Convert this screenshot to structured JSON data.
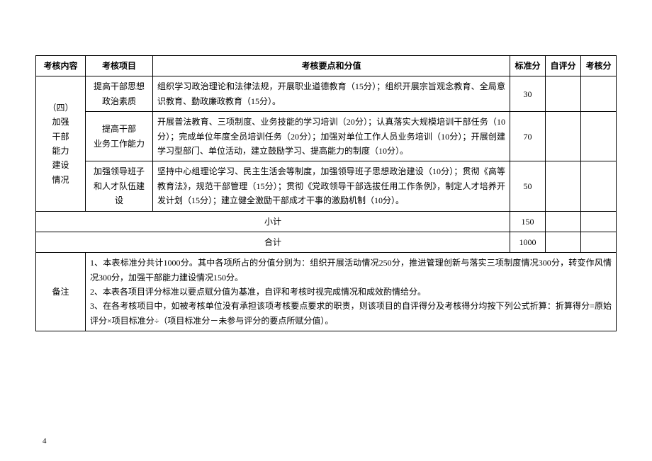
{
  "headers": {
    "col1": "考核内容",
    "col2": "考核项目",
    "col3": "考核要点和分值",
    "col4": "标准分",
    "col5": "自评分",
    "col6": "考核分"
  },
  "section": {
    "label_line1": "（四）",
    "label_line2": "加强",
    "label_line3": "干部",
    "label_line4": "能力",
    "label_line5": "建设",
    "label_line6": "情况"
  },
  "rows": [
    {
      "project_l1": "提高干部思想",
      "project_l2": "政治素质",
      "points": "组织学习政治理论和法律法规，开展职业道德教育（15分）；组织开展宗旨观念教育、全局意识教育、勤政廉政教育（15分）。",
      "std": "30"
    },
    {
      "project_l1": "提高干部",
      "project_l2": "业务工作能力",
      "points": "开展普法教育、三项制度、业务技能的学习培训（20分）；认真落实大规模培训干部任务（10分）；完成单位年度全员培训任务（20分）；加强对单位工作人员业务培训（10分）；开展创建学习型部门、单位活动，建立鼓励学习、提高能力的制度（10分）。",
      "std": "70"
    },
    {
      "project_l1": "加强领导班子",
      "project_l2": "和人才队伍建设",
      "points": "坚持中心组理论学习、民主生活会等制度，加强领导班子思想政治建设（10分）；贯彻《高等教育法》，规范干部管理（15分）；贯彻《党政领导干部选拔任用工作条例》，制定人才培养开发计划（15分）；建立健全激励干部成才干事的激励机制（10分）。",
      "std": "50"
    }
  ],
  "subtotal": {
    "label": "小计",
    "std": "150"
  },
  "total": {
    "label": "合计",
    "std": "1000"
  },
  "remark": {
    "label": "备注",
    "line1": "1、本表标准分共计1000分。其中各项所占的分值分别为：组织开展活动情况250分，推进管理创新与落实三项制度情况300分，转变作风情况300分，加强干部能力建设情况150分。",
    "line2": "2、本表各项目评分标准以要点赋分值为基准，自评和考核时视完成情况和成效酌情给分。",
    "line3": "3、在各考核项目中，如被考核单位没有承担该项考核要点要求的职责，则该项目的自评得分及考核得分均按下列公式折算：折算得分=原始评分×项目标准分÷（项目标准分－未参与评分的要点所赋分值）。"
  },
  "page_number": "4"
}
